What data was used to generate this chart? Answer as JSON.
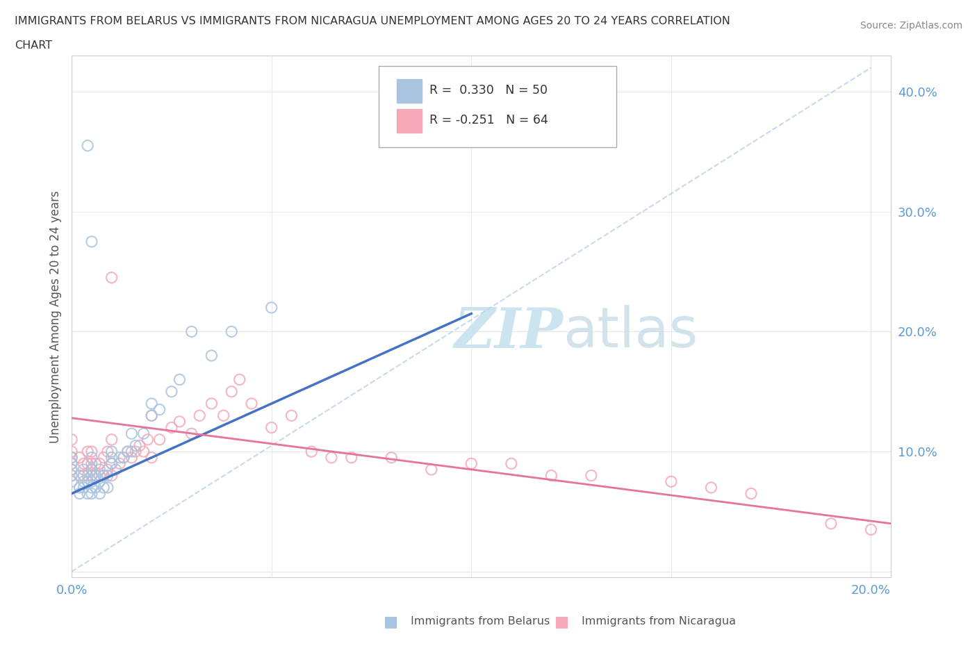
{
  "title_line1": "IMMIGRANTS FROM BELARUS VS IMMIGRANTS FROM NICARAGUA UNEMPLOYMENT AMONG AGES 20 TO 24 YEARS CORRELATION",
  "title_line2": "CHART",
  "source_text": "Source: ZipAtlas.com",
  "ylabel": "Unemployment Among Ages 20 to 24 years",
  "xlim": [
    0.0,
    0.205
  ],
  "ylim": [
    -0.005,
    0.43
  ],
  "color_belarus": "#a8c4e0",
  "color_nicaragua": "#f4a8b8",
  "line_color_belarus": "#4472c4",
  "line_color_nicaragua": "#e8739a",
  "diag_color": "#b8d0ea",
  "watermark_text": "ZIPatlas",
  "watermark_color": "#cce4f0",
  "bg_color": "#ffffff",
  "grid_color": "#e8e8e8",
  "tick_color": "#5b9bd5",
  "legend_label1": "R =  0.330   N = 50",
  "legend_label2": "R = -0.251   N = 64",
  "bottom_label1": "Immigrants from Belarus",
  "bottom_label2": "Immigrants from Nicaragua"
}
